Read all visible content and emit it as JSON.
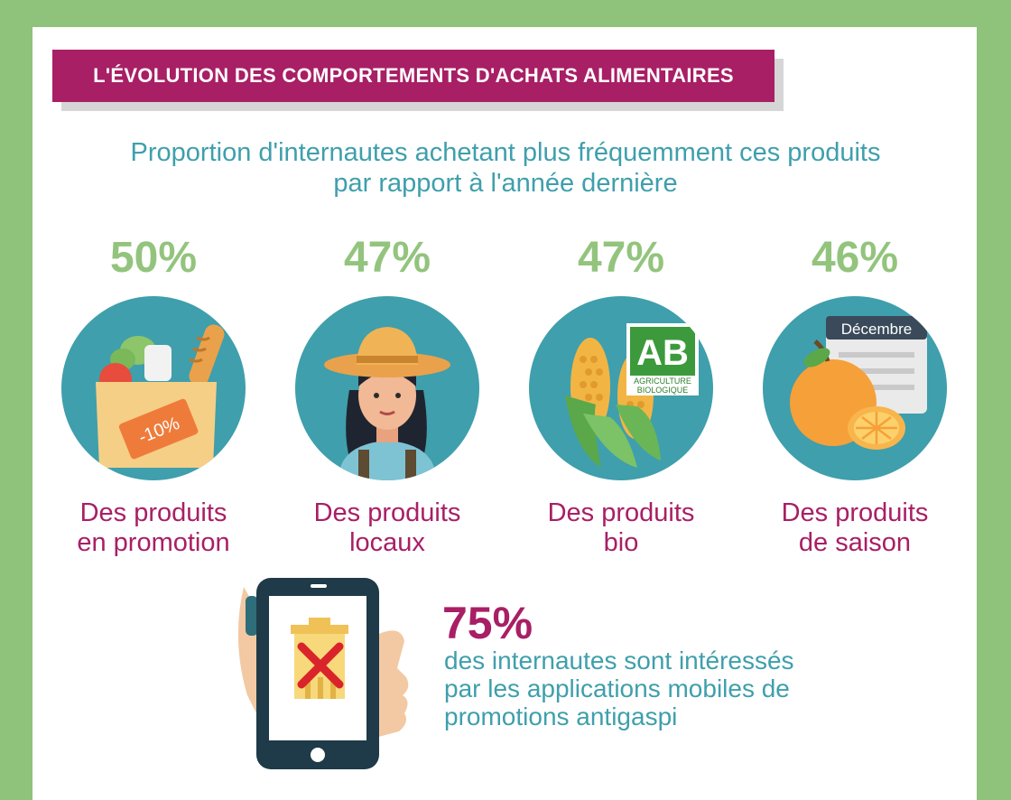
{
  "header": {
    "title": "L'ÉVOLUTION DES COMPORTEMENTS D'ACHATS ALIMENTAIRES"
  },
  "subtitle": {
    "line1": "Proportion d'internautes achetant plus fréquemment ces produits",
    "line2": "par rapport à l'année dernière"
  },
  "stats": [
    {
      "percent": "50%",
      "label_line1": "Des produits",
      "label_line2": "en promotion",
      "icon": "grocery-bag-icon",
      "icon_text": "-10%"
    },
    {
      "percent": "47%",
      "label_line1": "Des produits",
      "label_line2": "locaux",
      "icon": "farmer-icon"
    },
    {
      "percent": "47%",
      "label_line1": "Des produits",
      "label_line2": "bio",
      "icon": "corn-organic-icon",
      "logo_text": "AB",
      "logo_sub1": "AGRICULTURE",
      "logo_sub2": "BIOLOGIQUE"
    },
    {
      "percent": "46%",
      "label_line1": "Des produits",
      "label_line2": "de saison",
      "icon": "orange-calendar-icon",
      "calendar_text": "Décembre"
    }
  ],
  "mobile_stat": {
    "percent": "75%",
    "line1": "des internautes sont intéressés",
    "line2": "par les applications mobiles de",
    "line3": "promotions antigaspi",
    "icon": "phone-trash-icon"
  },
  "colors": {
    "background": "#8fc27b",
    "accent": "#a81f65",
    "teal": "#3f9fac",
    "green": "#93c47d"
  }
}
